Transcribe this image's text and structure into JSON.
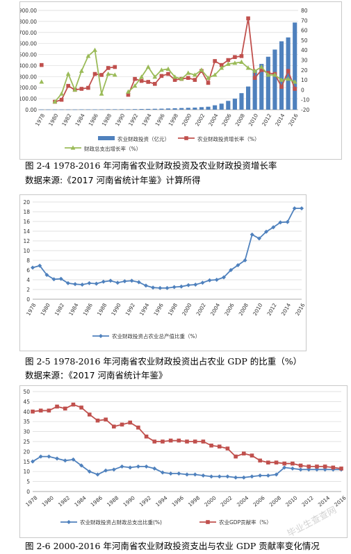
{
  "fig1": {
    "caption": "图 2-4 1978-2016 年河南省农业财政投资及农业财政投资增长率",
    "source": "数据来源:《2017 河南省统计年鉴》计算所得",
    "chart_data": {
      "type": "bar",
      "x": [
        1978,
        1979,
        1980,
        1981,
        1982,
        1983,
        1984,
        1985,
        1986,
        1987,
        1988,
        1989,
        1990,
        1991,
        1992,
        1993,
        1994,
        1995,
        1996,
        1997,
        1998,
        1999,
        2000,
        2001,
        2002,
        2003,
        2004,
        2005,
        2006,
        2007,
        2008,
        2009,
        2010,
        2011,
        2012,
        2013,
        2014,
        2015,
        2016
      ],
      "xticks": [
        "1978",
        "1980",
        "1982",
        "1984",
        "1986",
        "1988",
        "1990",
        "1992",
        "1994",
        "1996",
        "1998",
        "2000",
        "2002",
        "2004",
        "2006",
        "2008",
        "2010",
        "2012",
        "2014",
        "2016"
      ],
      "y_left_ticks": [
        "0.00",
        "100.00",
        "200.00",
        "300.00",
        "400.00",
        "500.00",
        "600.00",
        "700.00",
        "800.00",
        "900.00"
      ],
      "y_left_range": [
        0,
        900
      ],
      "y_right_ticks": [
        "-20",
        "-10",
        "0",
        "10",
        "20",
        "30",
        "40",
        "50",
        "60",
        "70",
        "80"
      ],
      "y_right_range": [
        -20,
        80
      ],
      "series": [
        {
          "name": "农业财政投资（亿元）",
          "axis": "left",
          "kind": "bar",
          "color": "#4f81bd",
          "values": [
            2,
            2,
            2,
            2,
            2,
            2,
            3,
            3,
            3,
            3,
            4,
            4,
            4,
            4,
            5,
            6,
            7,
            8,
            9,
            11,
            13,
            15,
            17,
            19,
            23,
            27,
            40,
            55,
            80,
            100,
            150,
            210,
            355,
            415,
            480,
            545,
            620,
            655,
            790
          ]
        },
        {
          "name": "农业财政投资增长率（%）",
          "axis": "right",
          "kind": "line",
          "color": "#c0504d",
          "values": [
            25,
            null,
            -12,
            -10,
            4,
            0,
            1,
            2,
            16,
            15,
            22,
            23,
            null,
            -5,
            11,
            9,
            8,
            6,
            14,
            16,
            10,
            11,
            12,
            10,
            19,
            7,
            29,
            25,
            30,
            33,
            34,
            72,
            12,
            20,
            17,
            16,
            3,
            19,
            1
          ]
        },
        {
          "name": "财政总支出增长率（%）",
          "axis": "right",
          "kind": "line",
          "color": "#9bbb59",
          "values": [
            8,
            null,
            -12,
            -4,
            16,
            0,
            19,
            34,
            40,
            -4,
            16,
            15,
            null,
            -2,
            4,
            13,
            23,
            13,
            20,
            21,
            13,
            11,
            17,
            15,
            20,
            12,
            15,
            22,
            26,
            27,
            28,
            22,
            19,
            23,
            15,
            15,
            10,
            11,
            8
          ]
        }
      ]
    }
  },
  "fig2": {
    "caption": "图 2-5 1978-2016 年河南省农业财政投资出占农业 GDP 的比重（%）",
    "source": "数据来源：《2017 河南省统计年鉴》",
    "chart_data": {
      "type": "line",
      "x": [
        1978,
        1979,
        1980,
        1981,
        1982,
        1983,
        1984,
        1985,
        1986,
        1987,
        1988,
        1989,
        1990,
        1991,
        1992,
        1993,
        1994,
        1995,
        1996,
        1997,
        1998,
        1999,
        2000,
        2001,
        2002,
        2003,
        2004,
        2005,
        2006,
        2007,
        2008,
        2009,
        2010,
        2011,
        2012,
        2013,
        2014,
        2015,
        2016
      ],
      "xticks": [
        "1978",
        "1980",
        "1982",
        "1984",
        "1986",
        "1988",
        "1990",
        "1992",
        "1994",
        "1996",
        "1998",
        "2000",
        "2002",
        "2004",
        "2006",
        "2008",
        "2010",
        "2012",
        "2014",
        "2016"
      ],
      "yticks": [
        "0",
        "2",
        "4",
        "6",
        "8",
        "10",
        "12",
        "14",
        "16",
        "18",
        "20"
      ],
      "ylim": [
        0,
        20
      ],
      "series": [
        {
          "name": "农业财政投资占农业总产值比重（%）",
          "color": "#4f81bd",
          "values": [
            6.5,
            6.9,
            5.0,
            4.1,
            4.2,
            3.3,
            3.1,
            3.0,
            3.3,
            3.2,
            3.6,
            3.8,
            3.4,
            3.7,
            3.8,
            3.5,
            2.8,
            2.4,
            2.3,
            2.3,
            2.5,
            2.6,
            2.9,
            3.0,
            3.4,
            3.9,
            4.0,
            4.5,
            6.0,
            7.0,
            8.0,
            13.3,
            12.5,
            13.9,
            14.8,
            15.8,
            15.9,
            18.7,
            18.7
          ]
        }
      ]
    }
  },
  "fig3": {
    "caption": "图 2-6 2000-2016 年河南省农业财政投资支出与农业 GDP 贡献率变化情况",
    "chart_data": {
      "type": "line",
      "x": [
        1978,
        1979,
        1980,
        1981,
        1982,
        1983,
        1984,
        1985,
        1986,
        1987,
        1988,
        1989,
        1990,
        1991,
        1992,
        1993,
        1994,
        1995,
        1996,
        1997,
        1998,
        1999,
        2000,
        2001,
        2002,
        2003,
        2004,
        2005,
        2006,
        2007,
        2008,
        2009,
        2010,
        2011,
        2012,
        2013,
        2014,
        2015,
        2016
      ],
      "xticks": [
        "1978",
        "1980",
        "1982",
        "1984",
        "1986",
        "1988",
        "1990",
        "1992",
        "1994",
        "1996",
        "1998",
        "2000",
        "2002",
        "2004",
        "2006",
        "2008",
        "2010",
        "2012",
        "2014",
        "2016"
      ],
      "yticks": [
        "0",
        "5",
        "10",
        "15",
        "20",
        "25",
        "30",
        "35",
        "40",
        "45",
        "50"
      ],
      "ylim": [
        0,
        50
      ],
      "series": [
        {
          "name": "农业财政投资占财政总支出比重(%)",
          "color": "#4f81bd",
          "values": [
            15,
            17.5,
            17.5,
            16.5,
            15.5,
            16,
            13,
            10,
            8.5,
            10.5,
            11,
            12.5,
            12,
            12.5,
            12.5,
            11.5,
            9.5,
            9,
            9,
            8.5,
            8.5,
            8,
            7.5,
            7.5,
            7.5,
            7,
            7,
            7.5,
            8,
            8,
            8.5,
            12,
            11.5,
            11,
            11,
            11,
            11,
            11,
            11
          ]
        },
        {
          "name": "农业GDP贡献率（%）",
          "color": "#c0504d",
          "values": [
            40,
            40.5,
            40.5,
            42.5,
            41.5,
            43.5,
            42,
            38.5,
            35.5,
            36,
            32.5,
            33.5,
            34.5,
            32,
            27.5,
            25,
            25,
            25.5,
            25.5,
            25,
            25,
            25,
            23,
            22.5,
            21.5,
            17.5,
            19,
            18,
            15.5,
            14.5,
            14.5,
            14,
            14,
            13,
            12.5,
            12.5,
            12.5,
            12,
            11.5
          ]
        }
      ]
    },
    "watermark": "毕业生查查网"
  }
}
